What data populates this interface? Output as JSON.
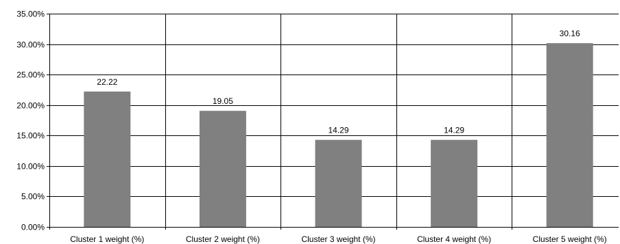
{
  "chart_data": {
    "type": "bar",
    "title": "",
    "xlabel": "",
    "ylabel": "",
    "categories": [
      "Cluster 1 weight (%)",
      "Cluster 2 weight (%)",
      "Cluster 3 weight (%)",
      "Cluster 4 weight (%)",
      "Cluster 5 weight (%)"
    ],
    "values": [
      22.22,
      19.05,
      14.29,
      14.29,
      30.16
    ],
    "data_labels": [
      "22.22",
      "19.05",
      "14.29",
      "14.29",
      "30.16"
    ],
    "ylim": [
      0,
      35
    ],
    "y_ticks": [
      0,
      5,
      10,
      15,
      20,
      25,
      30,
      35
    ],
    "y_tick_labels": [
      "0.00%",
      "5.00%",
      "10.00%",
      "15.00%",
      "20.00%",
      "25.00%",
      "30.00%",
      "35.00%"
    ],
    "grid": true,
    "vertical_category_separators": true,
    "legend": "none",
    "bar_color": "#808080",
    "grid_color": "#000000"
  }
}
